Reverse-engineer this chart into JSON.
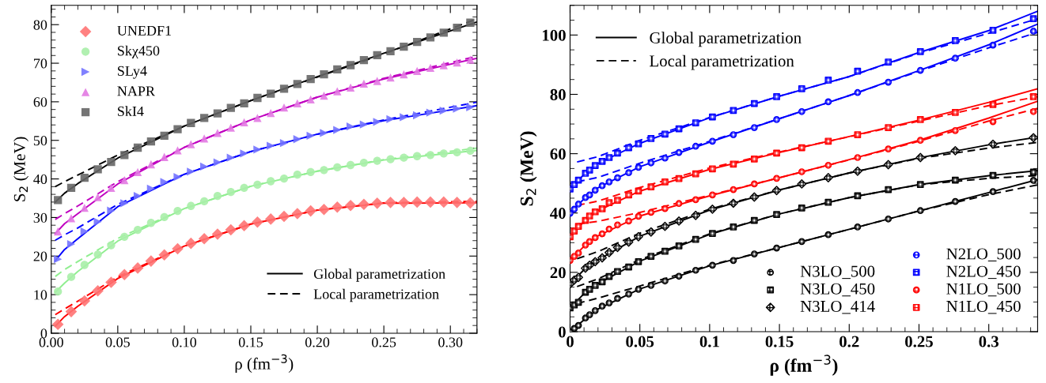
{
  "chart_data": [
    {
      "type": "scatter",
      "xlabel": "ρ (fm$^{−3}$)",
      "ylabel": "S$_{2}$ (MeV)",
      "xlim": [
        0,
        0.32
      ],
      "ylim": [
        0,
        85
      ],
      "xticks": [
        {
          "value": 0,
          "label": "0.00"
        },
        0.05,
        {
          "value": 0.1,
          "label": "0.10"
        },
        0.15,
        {
          "value": 0.2,
          "label": "0.20"
        },
        0.25,
        {
          "value": 0.3,
          "label": "0.30"
        }
      ],
      "yticks": [
        0,
        10,
        20,
        30,
        40,
        50,
        60,
        70,
        80
      ],
      "legend": "top left",
      "x": [
        0.005,
        0.015,
        0.025,
        0.035,
        0.045,
        0.055,
        0.065,
        0.075,
        0.085,
        0.095,
        0.105,
        0.115,
        0.125,
        0.135,
        0.145,
        0.155,
        0.165,
        0.175,
        0.185,
        0.195,
        0.205,
        0.215,
        0.225,
        0.235,
        0.245,
        0.255,
        0.265,
        0.275,
        0.285,
        0.295,
        0.305,
        0.315
      ],
      "series": [
        {
          "name": "UNEDF1",
          "color": "#ff7373",
          "marker": "diamond",
          "values": [
            2.3,
            5.6,
            8.4,
            11.0,
            13.2,
            15.2,
            16.9,
            18.7,
            20.3,
            21.9,
            23.3,
            24.5,
            25.7,
            26.8,
            27.9,
            28.8,
            29.6,
            30.3,
            31.0,
            31.7,
            32.1,
            32.7,
            33.1,
            33.4,
            33.7,
            33.9,
            33.9,
            34.0,
            34.0,
            34.0,
            33.9,
            33.8
          ]
        },
        {
          "name": "Skχ450",
          "color": "#a8eea8",
          "marker": "circle",
          "values": [
            10.8,
            14.6,
            17.7,
            20.4,
            22.8,
            25.0,
            26.8,
            28.6,
            30.1,
            31.7,
            33.0,
            34.2,
            35.6,
            36.6,
            37.7,
            38.5,
            39.4,
            40.1,
            41.1,
            41.8,
            42.3,
            43.0,
            43.6,
            44.2,
            44.7,
            45.1,
            45.5,
            45.9,
            46.2,
            46.6,
            46.9,
            47.3
          ]
        },
        {
          "name": "SLy4",
          "color": "#7373ff",
          "marker": "triangle-right",
          "values": [
            19.2,
            23.1,
            26.4,
            28.9,
            31.8,
            33.7,
            35.6,
            37.5,
            39.2,
            40.5,
            41.9,
            43.2,
            44.3,
            45.5,
            46.6,
            47.6,
            48.6,
            49.3,
            50.3,
            51.2,
            51.9,
            52.7,
            53.6,
            54.1,
            54.8,
            55.5,
            56.0,
            56.5,
            57.2,
            57.7,
            58.2,
            58.6
          ]
        },
        {
          "name": "NAPR",
          "color": "#e27ae2",
          "marker": "triangle",
          "values": [
            26.4,
            29.8,
            32.5,
            35.3,
            37.7,
            39.7,
            41.8,
            43.8,
            45.7,
            47.4,
            49.0,
            50.5,
            51.9,
            53.3,
            54.7,
            55.8,
            57.1,
            58.5,
            59.6,
            60.6,
            61.6,
            62.7,
            63.7,
            64.7,
            65.4,
            66.3,
            67.1,
            68.0,
            68.8,
            69.5,
            70.2,
            70.9
          ]
        },
        {
          "name": "SkI4",
          "color": "#666666",
          "marker": "square",
          "values": [
            34.5,
            37.7,
            40.3,
            42.5,
            44.4,
            46.2,
            48.1,
            49.7,
            51.2,
            52.9,
            54.5,
            55.8,
            57.0,
            58.4,
            59.6,
            61.0,
            62.1,
            63.4,
            64.6,
            65.9,
            67.1,
            68.4,
            69.5,
            70.8,
            72.1,
            73.1,
            74.3,
            75.5,
            76.7,
            77.9,
            79.2,
            80.5
          ]
        },
        {
          "type": "line",
          "color": "#ff0000",
          "line_style": "solid",
          "x": [
            0.003,
            0.01,
            0.02,
            0.05,
            0.1,
            0.15,
            0.2,
            0.25,
            0.32
          ],
          "values": [
            1.8,
            4.3,
            7.0,
            14.2,
            22.6,
            28.3,
            31.9,
            33.7,
            33.8
          ]
        },
        {
          "type": "line",
          "color": "#ff0000",
          "line_style": "dashed",
          "x": [
            0.003,
            0.01,
            0.02,
            0.05,
            0.1,
            0.15,
            0.2,
            0.25,
            0.32
          ],
          "values": [
            4.8,
            6.3,
            8.3,
            14.6,
            22.6,
            28.3,
            31.9,
            33.8,
            34.2
          ]
        },
        {
          "type": "line",
          "color": "#90ee90",
          "line_style": "solid",
          "x": [
            0.003,
            0.01,
            0.02,
            0.05,
            0.1,
            0.15,
            0.2,
            0.25,
            0.32
          ],
          "values": [
            10.6,
            13.0,
            16.0,
            23.9,
            32.3,
            38.1,
            42.0,
            44.9,
            47.4
          ]
        },
        {
          "type": "line",
          "color": "#90ee90",
          "line_style": "dashed",
          "x": [
            0.003,
            0.01,
            0.02,
            0.05,
            0.1,
            0.15,
            0.2,
            0.25,
            0.32
          ],
          "values": [
            14.7,
            16.5,
            18.6,
            24.6,
            32.3,
            38.1,
            42.0,
            45.0,
            48.0
          ]
        },
        {
          "type": "line",
          "color": "#0000ff",
          "line_style": "solid",
          "x": [
            0.003,
            0.01,
            0.02,
            0.05,
            0.1,
            0.15,
            0.2,
            0.25,
            0.32
          ],
          "values": [
            18.8,
            21.7,
            24.5,
            32.8,
            41.2,
            47.1,
            51.6,
            55.1,
            59.0
          ]
        },
        {
          "type": "line",
          "color": "#0000ff",
          "line_style": "dashed",
          "x": [
            0.003,
            0.01,
            0.02,
            0.05,
            0.1,
            0.15,
            0.2,
            0.25,
            0.32
          ],
          "values": [
            24.1,
            25.5,
            27.3,
            33.4,
            41.2,
            47.1,
            51.6,
            55.3,
            59.9
          ]
        },
        {
          "type": "line",
          "color": "#c000c0",
          "line_style": "solid",
          "x": [
            0.003,
            0.01,
            0.02,
            0.05,
            0.1,
            0.15,
            0.2,
            0.25,
            0.32
          ],
          "values": [
            25.8,
            28.4,
            31.0,
            38.7,
            48.2,
            55.3,
            61.2,
            65.9,
            71.3
          ]
        },
        {
          "type": "line",
          "color": "#c000c0",
          "line_style": "dashed",
          "x": [
            0.003,
            0.01,
            0.02,
            0.05,
            0.1,
            0.15,
            0.2,
            0.25,
            0.32
          ],
          "values": [
            29.5,
            31.0,
            33.0,
            39.3,
            48.2,
            55.3,
            61.2,
            66.1,
            71.8
          ]
        },
        {
          "type": "line",
          "name": "Global parametrization",
          "color": "#000000",
          "line_style": "solid",
          "x": [
            0.003,
            0.01,
            0.02,
            0.05,
            0.1,
            0.15,
            0.2,
            0.25,
            0.32
          ],
          "values": [
            34.0,
            36.3,
            38.8,
            45.4,
            53.7,
            60.3,
            66.5,
            72.6,
            80.7
          ]
        },
        {
          "type": "line",
          "name": "Local parametrization",
          "color": "#000000",
          "line_style": "dashed",
          "x": [
            0.003,
            0.01,
            0.02,
            0.05,
            0.1,
            0.15,
            0.2,
            0.25,
            0.32
          ],
          "values": [
            38.0,
            39.3,
            41.0,
            46.2,
            53.7,
            60.3,
            66.4,
            72.4,
            81.5
          ]
        }
      ]
    },
    {
      "type": "scatter",
      "xlabel": "ρ (fm$^{−3}$)",
      "ylabel": "S$_{2}$ (MeV)",
      "xlim": [
        0,
        0.335
      ],
      "ylim": [
        0,
        110
      ],
      "xticks": [
        0,
        0.05,
        0.1,
        0.15,
        0.2,
        0.25,
        0.3
      ],
      "yticks": [
        0,
        20,
        40,
        60,
        80,
        100
      ],
      "legend": "bottom right",
      "x": [
        0,
        0.003,
        0.006,
        0.011,
        0.014,
        0.018,
        0.023,
        0.028,
        0.034,
        0.042,
        0.049,
        0.058,
        0.068,
        0.078,
        0.09,
        0.102,
        0.117,
        0.132,
        0.148,
        0.166,
        0.185,
        0.206,
        0.228,
        0.251,
        0.276,
        0.303,
        0.332
      ],
      "series": [
        {
          "name": "N3LO_500",
          "color": "#000000",
          "marker": "circle",
          "values": [
            0,
            1.1,
            2.1,
            4.6,
            5.7,
            7.1,
            8.6,
            9.7,
            11.2,
            12.7,
            14.3,
            15.6,
            17.1,
            18.7,
            20.7,
            22.4,
            24.0,
            26.2,
            28.2,
            30.4,
            32.7,
            35.3,
            38.0,
            40.8,
            43.9,
            47.2,
            51.0
          ]
        },
        {
          "name": "N3LO_450",
          "color": "#000000",
          "marker": "square",
          "values": [
            8.0,
            9.0,
            9.9,
            13.3,
            14.3,
            15.6,
            16.8,
            18.6,
            20.3,
            21.8,
            23.6,
            25.4,
            27.1,
            28.9,
            31.1,
            33.1,
            35.3,
            37.5,
            39.5,
            41.7,
            43.6,
            45.8,
            47.9,
            49.6,
            51.1,
            52.7,
            53.8
          ]
        },
        {
          "name": "N3LO_414",
          "color": "#000000",
          "marker": "diamond",
          "values": [
            16.1,
            17.4,
            18.3,
            21.4,
            22.4,
            23.6,
            24.9,
            26.7,
            28.4,
            30.2,
            32.0,
            33.6,
            35.5,
            37.3,
            39.2,
            41.3,
            43.3,
            45.4,
            47.6,
            49.8,
            51.9,
            54.1,
            56.3,
            58.7,
            61.0,
            63.2,
            65.4
          ]
        },
        {
          "name": "N2LO_500",
          "color": "#0000ff",
          "marker": "circle",
          "values": [
            39.9,
            41.3,
            43.0,
            45.2,
            46.1,
            47.7,
            49.2,
            50.5,
            51.9,
            53.6,
            55.4,
            56.9,
            58.5,
            60.4,
            62.5,
            64.2,
            66.4,
            68.8,
            71.5,
            74.2,
            77.5,
            80.6,
            84.1,
            88.1,
            92.2,
            96.6,
            101.3
          ]
        },
        {
          "name": "N2LO_450",
          "color": "#0000ff",
          "marker": "square",
          "values": [
            48.1,
            49.6,
            51.1,
            53.4,
            54.5,
            56.0,
            57.4,
            58.7,
            60.2,
            62.0,
            63.3,
            65.1,
            66.6,
            68.4,
            70.4,
            72.4,
            74.6,
            76.9,
            79.2,
            81.9,
            84.8,
            87.8,
            90.9,
            94.4,
            98.1,
            101.6,
            105.5
          ]
        },
        {
          "name": "N1LO_500",
          "color": "#ff0000",
          "marker": "circle",
          "values": [
            24.0,
            25.4,
            26.5,
            29.2,
            30.4,
            31.7,
            33.0,
            34.6,
            36.0,
            37.3,
            38.9,
            40.2,
            41.5,
            43.2,
            44.5,
            46.1,
            47.9,
            49.8,
            51.7,
            53.9,
            56.1,
            58.7,
            61.6,
            64.5,
            67.8,
            70.8,
            74.2
          ]
        },
        {
          "name": "N1LO_450",
          "color": "#ff0000",
          "marker": "square",
          "values": [
            32.0,
            33.9,
            35.5,
            37.5,
            39.0,
            40.4,
            41.4,
            43.5,
            44.3,
            46.1,
            47.4,
            48.8,
            50.5,
            51.6,
            53.2,
            54.9,
            56.5,
            58.2,
            60.2,
            62.0,
            64.2,
            66.4,
            68.8,
            71.5,
            73.9,
            76.6,
            79.2
          ]
        },
        {
          "type": "line",
          "name": "Global parametrization",
          "color": "#000000",
          "line_style": "solid",
          "x": [
            0,
            0.01,
            0.02,
            0.05,
            0.1,
            0.15,
            0.2,
            0.25,
            0.3,
            0.335
          ],
          "values": [
            0,
            4.0,
            7.6,
            14.4,
            22.2,
            28.4,
            34.5,
            40.7,
            46.9,
            51.3
          ]
        },
        {
          "type": "line",
          "name": "Local parametrization",
          "color": "#000000",
          "line_style": "dashed",
          "x": [
            0.005,
            0.02,
            0.05,
            0.1,
            0.15,
            0.2,
            0.25,
            0.3,
            0.335
          ],
          "values": [
            9.5,
            11.3,
            15.4,
            22.4,
            28.4,
            34.5,
            40.7,
            46.2,
            49.5
          ]
        },
        {
          "type": "line",
          "color": "#000000",
          "line_style": "solid",
          "x": [
            0,
            0.01,
            0.02,
            0.05,
            0.1,
            0.15,
            0.2,
            0.25,
            0.3,
            0.335
          ],
          "values": [
            8.0,
            12.8,
            16.2,
            23.8,
            32.8,
            39.7,
            45.2,
            49.6,
            52.6,
            54.3
          ]
        },
        {
          "type": "line",
          "color": "#000000",
          "line_style": "dashed",
          "x": [
            0.005,
            0.02,
            0.05,
            0.1,
            0.15,
            0.2,
            0.25,
            0.3,
            0.335
          ],
          "values": [
            15.2,
            17.8,
            24.3,
            33.0,
            39.7,
            45.2,
            49.5,
            51.7,
            52.6
          ]
        },
        {
          "type": "line",
          "color": "#000000",
          "line_style": "solid",
          "x": [
            0,
            0.01,
            0.02,
            0.05,
            0.1,
            0.15,
            0.2,
            0.25,
            0.3,
            0.335
          ],
          "values": [
            16.1,
            20.9,
            24.2,
            32.2,
            41.0,
            47.8,
            53.5,
            58.6,
            63.0,
            65.6
          ]
        },
        {
          "type": "line",
          "color": "#000000",
          "line_style": "dashed",
          "x": [
            0.005,
            0.02,
            0.05,
            0.1,
            0.15,
            0.2,
            0.25,
            0.3,
            0.335
          ],
          "values": [
            24.6,
            27.0,
            33.2,
            41.3,
            47.8,
            53.5,
            58.4,
            61.9,
            63.8
          ]
        },
        {
          "type": "line",
          "color": "#ff0000",
          "line_style": "solid",
          "x": [
            0,
            0.01,
            0.02,
            0.05,
            0.1,
            0.15,
            0.2,
            0.25,
            0.3,
            0.335
          ],
          "values": [
            24.0,
            28.8,
            32.3,
            39.0,
            45.8,
            51.9,
            58.0,
            64.5,
            72.0,
            77.7
          ]
        },
        {
          "type": "line",
          "color": "#ff0000",
          "line_style": "dashed",
          "x": [
            0.005,
            0.02,
            0.05,
            0.1,
            0.15,
            0.2,
            0.25,
            0.3,
            0.335
          ],
          "values": [
            36.3,
            37.2,
            40.2,
            46.0,
            51.9,
            57.9,
            64.2,
            71.0,
            75.3
          ]
        },
        {
          "type": "line",
          "color": "#ff0000",
          "line_style": "solid",
          "x": [
            0,
            0.01,
            0.02,
            0.05,
            0.1,
            0.15,
            0.2,
            0.25,
            0.3,
            0.335
          ],
          "values": [
            32.0,
            37.2,
            40.8,
            47.4,
            54.7,
            60.4,
            65.8,
            71.3,
            77.3,
            81.9
          ]
        },
        {
          "type": "line",
          "color": "#ff0000",
          "line_style": "dashed",
          "x": [
            0.005,
            0.02,
            0.05,
            0.1,
            0.15,
            0.2,
            0.25,
            0.3,
            0.335
          ],
          "values": [
            42.6,
            44.0,
            48.6,
            55.2,
            60.6,
            65.7,
            71.0,
            76.2,
            79.2
          ]
        },
        {
          "type": "line",
          "color": "#0000ff",
          "line_style": "solid",
          "x": [
            0,
            0.01,
            0.02,
            0.05,
            0.1,
            0.15,
            0.2,
            0.25,
            0.3,
            0.335
          ],
          "values": [
            39.9,
            44.8,
            48.5,
            55.6,
            63.9,
            71.8,
            79.6,
            88.0,
            96.7,
            103.7
          ]
        },
        {
          "type": "line",
          "color": "#0000ff",
          "line_style": "dashed",
          "x": [
            0.005,
            0.02,
            0.05,
            0.1,
            0.15,
            0.2,
            0.25,
            0.3,
            0.335
          ],
          "values": [
            50.5,
            52.0,
            56.8,
            64.2,
            71.8,
            79.6,
            87.8,
            95.7,
            100.9
          ]
        },
        {
          "type": "line",
          "color": "#0000ff",
          "line_style": "solid",
          "x": [
            0,
            0.01,
            0.02,
            0.05,
            0.1,
            0.15,
            0.2,
            0.25,
            0.3,
            0.335
          ],
          "values": [
            48.1,
            53.0,
            56.7,
            63.5,
            72.1,
            79.4,
            86.0,
            94.1,
            101.5,
            108.0
          ]
        },
        {
          "type": "line",
          "color": "#0000ff",
          "line_style": "dashed",
          "x": [
            0.005,
            0.02,
            0.05,
            0.1,
            0.15,
            0.2,
            0.25,
            0.3,
            0.335
          ],
          "values": [
            57.2,
            59.0,
            64.5,
            72.2,
            79.4,
            86.0,
            93.9,
            100.6,
            105.5
          ]
        }
      ]
    }
  ]
}
